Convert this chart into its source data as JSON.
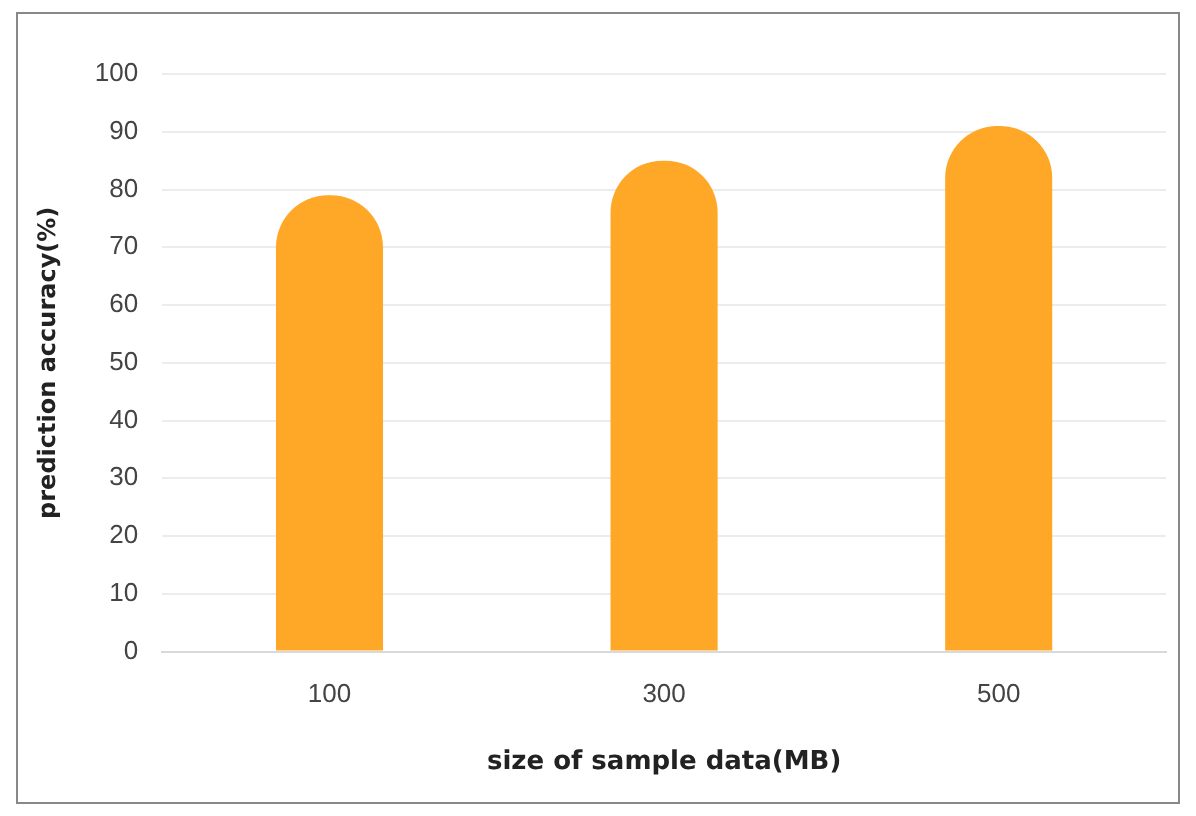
{
  "chart_data": {
    "type": "bar",
    "xlabel": "size of sample data(MB)",
    "ylabel": "prediction accuracy(%)",
    "categories": [
      "100",
      "300",
      "500"
    ],
    "values": [
      79,
      85,
      91
    ],
    "color": "#ffa726",
    "ylim": [
      0,
      100
    ],
    "yticks": [
      0,
      10,
      20,
      30,
      40,
      50,
      60,
      70,
      80,
      90,
      100
    ],
    "grid": "y",
    "legend": false
  }
}
